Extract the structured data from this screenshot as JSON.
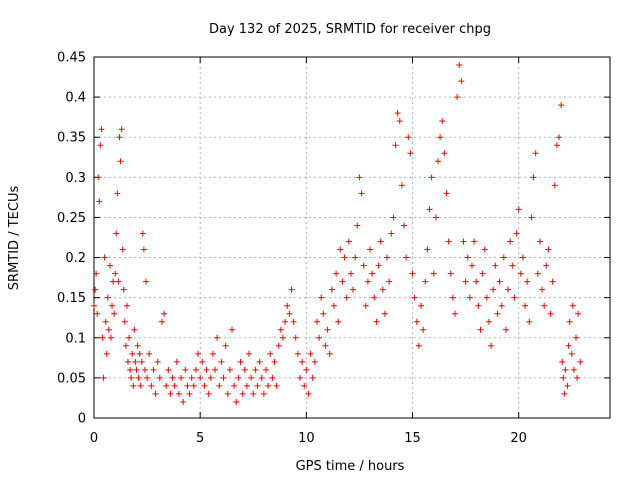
{
  "chart_data": {
    "type": "scatter",
    "title": "Day 132 of 2025, SRMTID for receiver chpg",
    "xlabel": "GPS time / hours",
    "ylabel": "SRMTID / TECUs",
    "xlim": [
      0,
      24.3
    ],
    "ylim": [
      0,
      0.45
    ],
    "xticks": [
      0,
      5,
      10,
      15,
      20
    ],
    "xtick_labels": [
      "0",
      "5",
      "10",
      "15",
      "20"
    ],
    "yticks": [
      0,
      0.05,
      0.1,
      0.15,
      0.2,
      0.25,
      0.3,
      0.35,
      0.4,
      0.45
    ],
    "ytick_labels": [
      "0",
      "0.05",
      "0.1",
      "0.15",
      "0.2",
      "0.25",
      "0.3",
      "0.35",
      "0.4",
      "0.45"
    ],
    "grid": true,
    "marker": "+",
    "marker_color": "#ff0000",
    "series": [
      {
        "name": "SRMTID",
        "color": "#ff0000",
        "points": [
          [
            0.0,
            0.14
          ],
          [
            0.05,
            0.16
          ],
          [
            0.1,
            0.18
          ],
          [
            0.15,
            0.13
          ],
          [
            0.2,
            0.3
          ],
          [
            0.25,
            0.27
          ],
          [
            0.3,
            0.34
          ],
          [
            0.35,
            0.36
          ],
          [
            0.4,
            0.1
          ],
          [
            0.45,
            0.05
          ],
          [
            0.5,
            0.2
          ],
          [
            0.55,
            0.12
          ],
          [
            0.6,
            0.08
          ],
          [
            0.65,
            0.15
          ],
          [
            0.7,
            0.11
          ],
          [
            0.75,
            0.19
          ],
          [
            0.8,
            0.1
          ],
          [
            0.85,
            0.14
          ],
          [
            0.9,
            0.17
          ],
          [
            0.95,
            0.13
          ],
          [
            1.0,
            0.18
          ],
          [
            1.05,
            0.23
          ],
          [
            1.1,
            0.28
          ],
          [
            1.15,
            0.17
          ],
          [
            1.2,
            0.35
          ],
          [
            1.25,
            0.32
          ],
          [
            1.3,
            0.36
          ],
          [
            1.35,
            0.21
          ],
          [
            1.4,
            0.16
          ],
          [
            1.45,
            0.12
          ],
          [
            1.5,
            0.09
          ],
          [
            1.55,
            0.14
          ],
          [
            1.6,
            0.07
          ],
          [
            1.65,
            0.1
          ],
          [
            1.7,
            0.06
          ],
          [
            1.75,
            0.05
          ],
          [
            1.8,
            0.08
          ],
          [
            1.85,
            0.04
          ],
          [
            1.9,
            0.11
          ],
          [
            1.95,
            0.07
          ],
          [
            2.0,
            0.06
          ],
          [
            2.05,
            0.09
          ],
          [
            2.1,
            0.05
          ],
          [
            2.15,
            0.08
          ],
          [
            2.2,
            0.04
          ],
          [
            2.25,
            0.07
          ],
          [
            2.3,
            0.23
          ],
          [
            2.35,
            0.21
          ],
          [
            2.4,
            0.06
          ],
          [
            2.45,
            0.17
          ],
          [
            2.5,
            0.05
          ],
          [
            2.6,
            0.08
          ],
          [
            2.7,
            0.04
          ],
          [
            2.8,
            0.06
          ],
          [
            2.9,
            0.03
          ],
          [
            3.0,
            0.07
          ],
          [
            3.1,
            0.05
          ],
          [
            3.2,
            0.12
          ],
          [
            3.3,
            0.13
          ],
          [
            3.4,
            0.04
          ],
          [
            3.5,
            0.06
          ],
          [
            3.6,
            0.03
          ],
          [
            3.7,
            0.05
          ],
          [
            3.8,
            0.04
          ],
          [
            3.9,
            0.07
          ],
          [
            4.0,
            0.03
          ],
          [
            4.1,
            0.05
          ],
          [
            4.2,
            0.02
          ],
          [
            4.3,
            0.06
          ],
          [
            4.4,
            0.04
          ],
          [
            4.5,
            0.03
          ],
          [
            4.6,
            0.05
          ],
          [
            4.7,
            0.04
          ],
          [
            4.8,
            0.06
          ],
          [
            4.9,
            0.08
          ],
          [
            5.0,
            0.05
          ],
          [
            5.1,
            0.07
          ],
          [
            5.2,
            0.04
          ],
          [
            5.3,
            0.06
          ],
          [
            5.4,
            0.03
          ],
          [
            5.5,
            0.05
          ],
          [
            5.6,
            0.08
          ],
          [
            5.7,
            0.06
          ],
          [
            5.8,
            0.1
          ],
          [
            5.9,
            0.04
          ],
          [
            6.0,
            0.07
          ],
          [
            6.1,
            0.05
          ],
          [
            6.2,
            0.09
          ],
          [
            6.3,
            0.03
          ],
          [
            6.4,
            0.06
          ],
          [
            6.5,
            0.11
          ],
          [
            6.6,
            0.04
          ],
          [
            6.7,
            0.02
          ],
          [
            6.8,
            0.05
          ],
          [
            6.9,
            0.07
          ],
          [
            7.0,
            0.03
          ],
          [
            7.1,
            0.06
          ],
          [
            7.2,
            0.04
          ],
          [
            7.3,
            0.08
          ],
          [
            7.4,
            0.05
          ],
          [
            7.5,
            0.03
          ],
          [
            7.6,
            0.06
          ],
          [
            7.7,
            0.04
          ],
          [
            7.8,
            0.07
          ],
          [
            7.9,
            0.05
          ],
          [
            8.0,
            0.03
          ],
          [
            8.1,
            0.06
          ],
          [
            8.2,
            0.04
          ],
          [
            8.3,
            0.08
          ],
          [
            8.4,
            0.05
          ],
          [
            8.5,
            0.07
          ],
          [
            8.6,
            0.04
          ],
          [
            8.7,
            0.09
          ],
          [
            8.8,
            0.11
          ],
          [
            8.9,
            0.1
          ],
          [
            9.0,
            0.12
          ],
          [
            9.1,
            0.14
          ],
          [
            9.2,
            0.13
          ],
          [
            9.3,
            0.16
          ],
          [
            9.4,
            0.12
          ],
          [
            9.5,
            0.1
          ],
          [
            9.6,
            0.08
          ],
          [
            9.7,
            0.05
          ],
          [
            9.8,
            0.07
          ],
          [
            9.9,
            0.04
          ],
          [
            10.0,
            0.06
          ],
          [
            10.1,
            0.03
          ],
          [
            10.2,
            0.08
          ],
          [
            10.3,
            0.05
          ],
          [
            10.4,
            0.07
          ],
          [
            10.5,
            0.12
          ],
          [
            10.6,
            0.1
          ],
          [
            10.7,
            0.15
          ],
          [
            10.8,
            0.13
          ],
          [
            10.9,
            0.09
          ],
          [
            11.0,
            0.11
          ],
          [
            11.1,
            0.08
          ],
          [
            11.2,
            0.16
          ],
          [
            11.3,
            0.14
          ],
          [
            11.4,
            0.18
          ],
          [
            11.5,
            0.12
          ],
          [
            11.6,
            0.21
          ],
          [
            11.7,
            0.17
          ],
          [
            11.8,
            0.2
          ],
          [
            11.9,
            0.15
          ],
          [
            12.0,
            0.22
          ],
          [
            12.1,
            0.18
          ],
          [
            12.2,
            0.16
          ],
          [
            12.3,
            0.2
          ],
          [
            12.4,
            0.24
          ],
          [
            12.5,
            0.3
          ],
          [
            12.6,
            0.28
          ],
          [
            12.7,
            0.19
          ],
          [
            12.8,
            0.14
          ],
          [
            12.9,
            0.17
          ],
          [
            13.0,
            0.21
          ],
          [
            13.1,
            0.18
          ],
          [
            13.2,
            0.15
          ],
          [
            13.3,
            0.12
          ],
          [
            13.4,
            0.19
          ],
          [
            13.5,
            0.22
          ],
          [
            13.6,
            0.16
          ],
          [
            13.7,
            0.13
          ],
          [
            13.8,
            0.2
          ],
          [
            13.9,
            0.17
          ],
          [
            14.0,
            0.23
          ],
          [
            14.1,
            0.25
          ],
          [
            14.2,
            0.34
          ],
          [
            14.3,
            0.38
          ],
          [
            14.4,
            0.37
          ],
          [
            14.5,
            0.29
          ],
          [
            14.6,
            0.24
          ],
          [
            14.7,
            0.2
          ],
          [
            14.8,
            0.35
          ],
          [
            14.9,
            0.33
          ],
          [
            15.0,
            0.18
          ],
          [
            15.1,
            0.15
          ],
          [
            15.2,
            0.12
          ],
          [
            15.3,
            0.09
          ],
          [
            15.4,
            0.14
          ],
          [
            15.5,
            0.11
          ],
          [
            15.6,
            0.17
          ],
          [
            15.7,
            0.21
          ],
          [
            15.8,
            0.26
          ],
          [
            15.9,
            0.3
          ],
          [
            16.0,
            0.18
          ],
          [
            16.1,
            0.25
          ],
          [
            16.2,
            0.32
          ],
          [
            16.3,
            0.35
          ],
          [
            16.4,
            0.37
          ],
          [
            16.5,
            0.33
          ],
          [
            16.6,
            0.28
          ],
          [
            16.7,
            0.22
          ],
          [
            16.8,
            0.18
          ],
          [
            16.9,
            0.15
          ],
          [
            17.0,
            0.13
          ],
          [
            17.1,
            0.4
          ],
          [
            17.2,
            0.44
          ],
          [
            17.3,
            0.42
          ],
          [
            17.4,
            0.22
          ],
          [
            17.5,
            0.17
          ],
          [
            17.6,
            0.2
          ],
          [
            17.7,
            0.15
          ],
          [
            17.8,
            0.19
          ],
          [
            17.9,
            0.22
          ],
          [
            18.0,
            0.17
          ],
          [
            18.1,
            0.14
          ],
          [
            18.2,
            0.11
          ],
          [
            18.3,
            0.18
          ],
          [
            18.4,
            0.21
          ],
          [
            18.5,
            0.15
          ],
          [
            18.6,
            0.12
          ],
          [
            18.7,
            0.09
          ],
          [
            18.8,
            0.16
          ],
          [
            18.9,
            0.19
          ],
          [
            19.0,
            0.13
          ],
          [
            19.1,
            0.17
          ],
          [
            19.2,
            0.14
          ],
          [
            19.3,
            0.2
          ],
          [
            19.4,
            0.11
          ],
          [
            19.5,
            0.16
          ],
          [
            19.6,
            0.22
          ],
          [
            19.7,
            0.19
          ],
          [
            19.8,
            0.15
          ],
          [
            19.9,
            0.23
          ],
          [
            20.0,
            0.26
          ],
          [
            20.1,
            0.18
          ],
          [
            20.2,
            0.2
          ],
          [
            20.3,
            0.14
          ],
          [
            20.4,
            0.17
          ],
          [
            20.5,
            0.12
          ],
          [
            20.6,
            0.25
          ],
          [
            20.7,
            0.3
          ],
          [
            20.8,
            0.33
          ],
          [
            20.9,
            0.18
          ],
          [
            21.0,
            0.22
          ],
          [
            21.1,
            0.16
          ],
          [
            21.2,
            0.14
          ],
          [
            21.3,
            0.19
          ],
          [
            21.4,
            0.21
          ],
          [
            21.5,
            0.13
          ],
          [
            21.6,
            0.17
          ],
          [
            21.7,
            0.29
          ],
          [
            21.8,
            0.34
          ],
          [
            21.9,
            0.35
          ],
          [
            22.0,
            0.39
          ],
          [
            22.05,
            0.07
          ],
          [
            22.1,
            0.05
          ],
          [
            22.15,
            0.03
          ],
          [
            22.2,
            0.06
          ],
          [
            22.3,
            0.04
          ],
          [
            22.35,
            0.09
          ],
          [
            22.4,
            0.12
          ],
          [
            22.5,
            0.08
          ],
          [
            22.55,
            0.14
          ],
          [
            22.6,
            0.06
          ],
          [
            22.7,
            0.1
          ],
          [
            22.75,
            0.05
          ],
          [
            22.8,
            0.13
          ],
          [
            22.9,
            0.07
          ]
        ]
      }
    ]
  }
}
